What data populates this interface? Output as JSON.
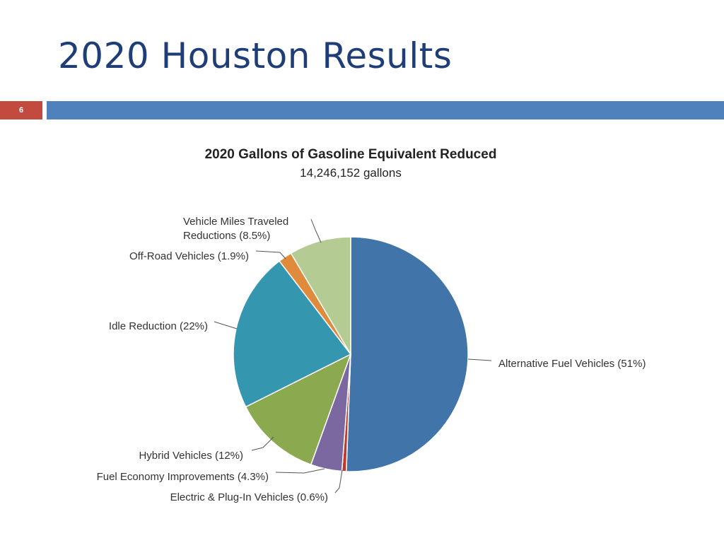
{
  "slide": {
    "title": "2020 Houston Results",
    "page_number": "6"
  },
  "colors": {
    "title": "#1f3e78",
    "page_badge": "#c24a3f",
    "header_bar": "#4f81bd"
  },
  "chart_data": {
    "type": "pie",
    "title": "2020 Gallons of Gasoline Equivalent Reduced",
    "subtitle": "14,246,152 gallons",
    "start_angle_deg": 0,
    "direction": "clockwise",
    "slices": [
      {
        "name": "Alternative Fuel Vehicles",
        "label": "Alternative Fuel Vehicles (51%)",
        "value": 50.6,
        "color": "#4174a8"
      },
      {
        "name": "Electric & Plug-In Vehicles",
        "label": "Electric & Plug-In Vehicles (0.6%)",
        "value": 0.6,
        "color": "#c0392b"
      },
      {
        "name": "Fuel Economy Improvements",
        "label": "Fuel Economy Improvements (4.3%)",
        "value": 4.3,
        "color": "#7b68a0"
      },
      {
        "name": "Hybrid Vehicles",
        "label": "Hybrid Vehicles (12%)",
        "value": 12.1,
        "color": "#8ba94f"
      },
      {
        "name": "Idle Reduction",
        "label": "Idle Reduction (22%)",
        "value": 22.0,
        "color": "#3596b0"
      },
      {
        "name": "Off-Road Vehicles",
        "label": "Off-Road Vehicles (1.9%)",
        "value": 1.9,
        "color": "#e08a3c"
      },
      {
        "name": "Vehicle Miles Traveled Reductions",
        "label": "Vehicle Miles Traveled Reductions (8.5%)",
        "label_lines": [
          "Vehicle Miles Traveled",
          "Reductions (8.5%)"
        ],
        "value": 8.5,
        "color": "#b4cc93"
      }
    ]
  }
}
